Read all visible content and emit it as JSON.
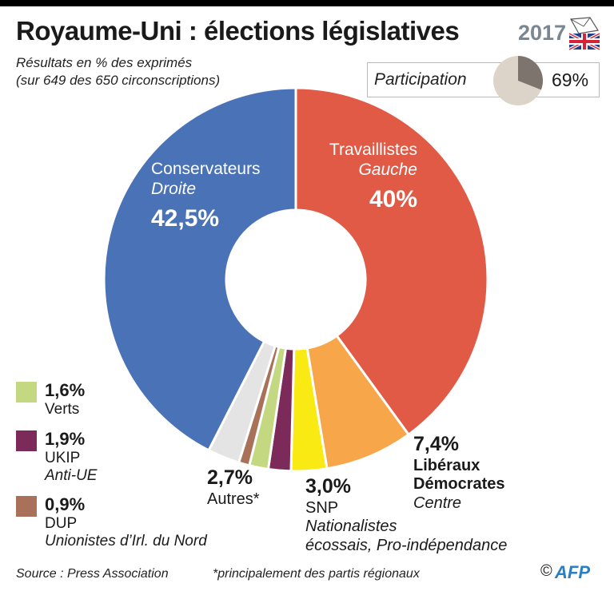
{
  "header": {
    "title": "Royaume-Uni : élections législatives",
    "subtitle_line1": "Résultats en % des exprimés",
    "subtitle_line2": "(sur 649 des 650 circonscriptions)",
    "year": "2017",
    "badge_icon": "uk-flag-ballot-icon"
  },
  "participation": {
    "label": "Participation",
    "value_text": "69%",
    "value": 69,
    "colors": {
      "filled": "#7d746e",
      "rest": "#dcd4c8"
    }
  },
  "chart_data": {
    "type": "pie",
    "title": "Royaume-Uni : élections législatives",
    "slices": [
      {
        "name": "Travaillistes",
        "value": 40.0,
        "color": "#e05a45"
      },
      {
        "name": "Libéraux Démocrates",
        "value": 7.4,
        "color": "#f7a64a"
      },
      {
        "name": "SNP",
        "value": 3.0,
        "color": "#f8ea12"
      },
      {
        "name": "UKIP",
        "value": 1.9,
        "color": "#7b2a5a"
      },
      {
        "name": "Verts",
        "value": 1.6,
        "color": "#c3d881"
      },
      {
        "name": "DUP",
        "value": 0.9,
        "color": "#a9705a"
      },
      {
        "name": "Autres",
        "value": 2.7,
        "color": "#e4e4e4"
      },
      {
        "name": "Conservateurs",
        "value": 42.5,
        "color": "#4a72b6"
      }
    ]
  },
  "labels": {
    "conservateurs": {
      "name": "Conservateurs",
      "sub": "Droite",
      "pct": "42,5%"
    },
    "travaillistes": {
      "name": "Travaillistes",
      "sub": "Gauche",
      "pct": "40%"
    },
    "libdem": {
      "pct": "7,4%",
      "name1": "Libéraux",
      "name2": "Démocrates",
      "sub": "Centre"
    },
    "snp": {
      "pct": "3,0%",
      "name": "SNP",
      "sub1": "Nationalistes",
      "sub2": "écossais, Pro-indépendance"
    },
    "autres": {
      "pct": "2,7%",
      "name": "Autres*"
    }
  },
  "legend": [
    {
      "pct": "1,6%",
      "name": "Verts",
      "sub": "",
      "color": "#c3d881"
    },
    {
      "pct": "1,9%",
      "name": "UKIP",
      "sub": "Anti-UE",
      "color": "#7b2a5a"
    },
    {
      "pct": "0,9%",
      "name": "DUP",
      "sub": "Unionistes d’Irl. du Nord",
      "color": "#a9705a"
    }
  ],
  "footer": {
    "source": "Source : Press Association",
    "note": "*principalement des partis régionaux",
    "copyright": "©",
    "agency": "AFP"
  }
}
